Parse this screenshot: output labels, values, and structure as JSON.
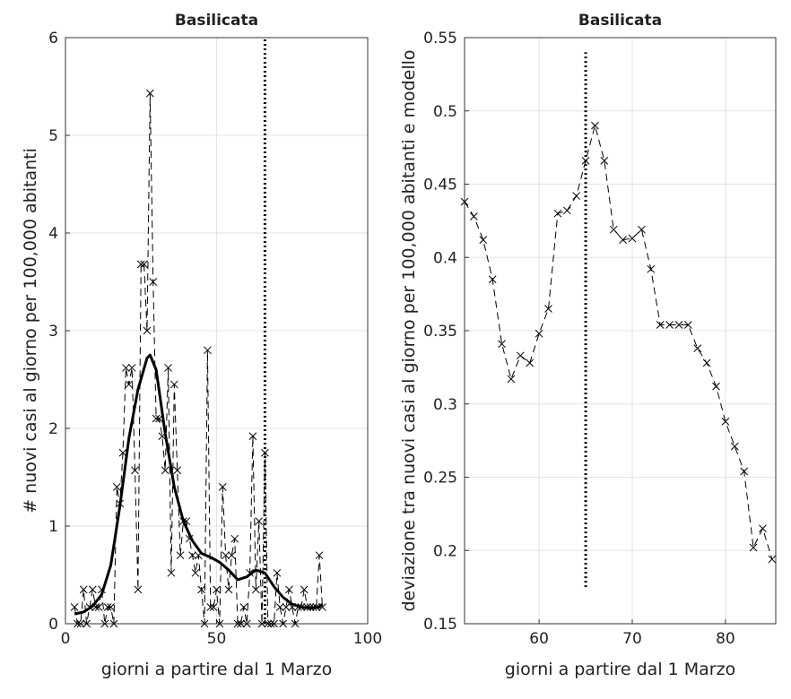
{
  "chart_data": [
    {
      "type": "line",
      "title": "Basilicata",
      "x_label": "giorni a partire dal 1 Marzo",
      "y_label": "# nuovi casi al giorno per 100,000 abitanti",
      "xlim": [
        0,
        100
      ],
      "xticks": [
        0,
        50,
        100
      ],
      "ylim": [
        0,
        6
      ],
      "yticks": [
        0,
        1,
        2,
        3,
        4,
        5,
        6
      ],
      "grid": true,
      "series": [
        {
          "color": "#000000",
          "style": "dashed",
          "marker": "x",
          "x": [
            3,
            4,
            5,
            6,
            7,
            8,
            9,
            10,
            11,
            12,
            13,
            14,
            15,
            16,
            17,
            18,
            19,
            20,
            21,
            22,
            23,
            24,
            25,
            26,
            27,
            28,
            29,
            30,
            31,
            32,
            33,
            34,
            35,
            36,
            37,
            38,
            39,
            40,
            41,
            42,
            43,
            44,
            45,
            46,
            47,
            48,
            49,
            50,
            51,
            52,
            53,
            54,
            55,
            56,
            57,
            58,
            59,
            60,
            61,
            62,
            63,
            64,
            65,
            66,
            67,
            68,
            69,
            70,
            71,
            72,
            73,
            74,
            75,
            76,
            77,
            78,
            79,
            80,
            81,
            82,
            83,
            84,
            85
          ],
          "values": [
            0.17,
            0,
            0,
            0.35,
            0,
            0.17,
            0.35,
            0.17,
            0.17,
            0.35,
            0,
            0.17,
            0.17,
            0,
            1.4,
            1.23,
            1.75,
            2.62,
            2.45,
            2.62,
            1.57,
            0.35,
            3.68,
            3.68,
            3.0,
            5.43,
            3.5,
            2.1,
            2.1,
            1.92,
            1.57,
            2.62,
            0.52,
            2.45,
            1.57,
            0.7,
            1.05,
            1.05,
            0.87,
            0.7,
            0.52,
            0.7,
            0.35,
            0,
            2.8,
            0.17,
            0.17,
            0.35,
            0,
            1.4,
            0.7,
            0.35,
            0.7,
            0.87,
            0,
            0,
            0.17,
            0,
            0.52,
            1.92,
            0.35,
            1.05,
            0,
            1.75,
            0,
            0,
            0,
            0.52,
            0.17,
            0,
            0.17,
            0.35,
            0.17,
            0,
            0.17,
            0.17,
            0.35,
            0.17,
            0.17,
            0.17,
            0.17,
            0.7,
            0.17
          ]
        },
        {
          "color": "#000000",
          "style": "solid",
          "width": 3,
          "x": [
            3,
            6,
            9,
            12,
            15,
            18,
            21,
            24,
            27,
            28,
            30,
            33,
            36,
            39,
            42,
            45,
            48,
            51,
            54,
            57,
            60,
            63,
            66,
            69,
            72,
            75,
            78,
            81,
            84,
            85
          ],
          "values": [
            0.1,
            0.12,
            0.18,
            0.3,
            0.6,
            1.2,
            1.9,
            2.4,
            2.72,
            2.75,
            2.6,
            1.95,
            1.4,
            1.05,
            0.85,
            0.72,
            0.68,
            0.63,
            0.55,
            0.45,
            0.48,
            0.55,
            0.52,
            0.38,
            0.27,
            0.2,
            0.17,
            0.16,
            0.17,
            0.2
          ]
        }
      ],
      "vertical_line": {
        "x": 66,
        "y": [
          0,
          6
        ]
      }
    },
    {
      "type": "line",
      "title": "Basilicata",
      "x_label": "giorni a partire dal 1 Marzo",
      "y_label": "deviazione tra nuovi casi al giorno per 100,000 abitanti e modello",
      "xlim": [
        52,
        85.4
      ],
      "xticks": [
        60,
        70,
        80
      ],
      "ylim": [
        0.15,
        0.55
      ],
      "yticks": [
        0.15,
        0.2,
        0.25,
        0.3,
        0.35,
        0.4,
        0.45,
        0.5,
        0.55
      ],
      "grid": true,
      "series": [
        {
          "color": "#000000",
          "style": "dashed",
          "marker": "x",
          "x": [
            52,
            53,
            54,
            55,
            56,
            57,
            58,
            59,
            60,
            61,
            62,
            63,
            64,
            65,
            66,
            67,
            68,
            69,
            70,
            71,
            72,
            73,
            74,
            75,
            76,
            77,
            78,
            79,
            80,
            81,
            82,
            83,
            84,
            85
          ],
          "values": [
            0.438,
            0.428,
            0.412,
            0.385,
            0.341,
            0.317,
            0.333,
            0.328,
            0.348,
            0.365,
            0.43,
            0.432,
            0.442,
            0.466,
            0.49,
            0.466,
            0.419,
            0.412,
            0.413,
            0.419,
            0.392,
            0.354,
            0.354,
            0.354,
            0.354,
            0.338,
            0.328,
            0.312,
            0.288,
            0.271,
            0.254,
            0.202,
            0.215,
            0.194
          ]
        }
      ],
      "vertical_line": {
        "x": 65,
        "y": [
          0.175,
          0.54
        ]
      }
    }
  ]
}
